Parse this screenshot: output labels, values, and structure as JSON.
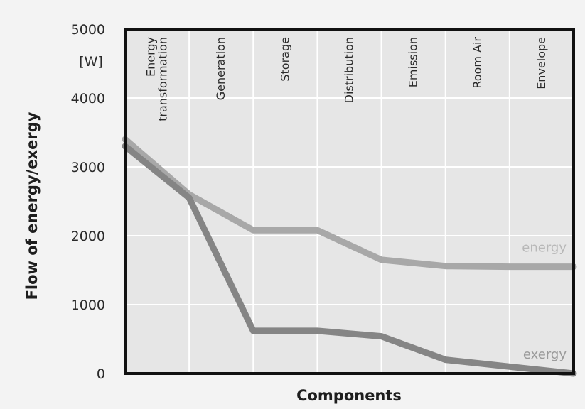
{
  "chart_data": {
    "type": "line",
    "title": "",
    "xlabel": "Components",
    "ylabel": "Flow of energy/exergy",
    "y_unit": "[W]",
    "categories": [
      "Energy transformation",
      "Generation",
      "Storage",
      "Distribution",
      "Emission",
      "Room Air",
      "Envelope"
    ],
    "category_lines": [
      [
        "Energy",
        "transformation"
      ],
      [
        "Generation"
      ],
      [
        "Storage"
      ],
      [
        "Distribution"
      ],
      [
        "Emission"
      ],
      [
        "Room Air"
      ],
      [
        "Envelope"
      ]
    ],
    "ylim": [
      0,
      5000
    ],
    "yticks": [
      "0",
      "1000",
      "2000",
      "3000",
      "4000",
      "5000"
    ],
    "grid": true,
    "boundaries": [
      0,
      1,
      2,
      3,
      4,
      5,
      6,
      7
    ],
    "series": [
      {
        "name": "energy",
        "color": "#a8a8a8",
        "points": [
          [
            0,
            3400
          ],
          [
            1,
            2600
          ],
          [
            2,
            2080
          ],
          [
            3,
            2080
          ],
          [
            4,
            1650
          ],
          [
            5,
            1560
          ],
          [
            6,
            1550
          ],
          [
            7,
            1550
          ]
        ]
      },
      {
        "name": "exergy",
        "color": "#858585",
        "points": [
          [
            0,
            3300
          ],
          [
            1,
            2550
          ],
          [
            2,
            620
          ],
          [
            3,
            620
          ],
          [
            4,
            540
          ],
          [
            5,
            200
          ],
          [
            6,
            100
          ],
          [
            7,
            0
          ]
        ]
      }
    ]
  }
}
